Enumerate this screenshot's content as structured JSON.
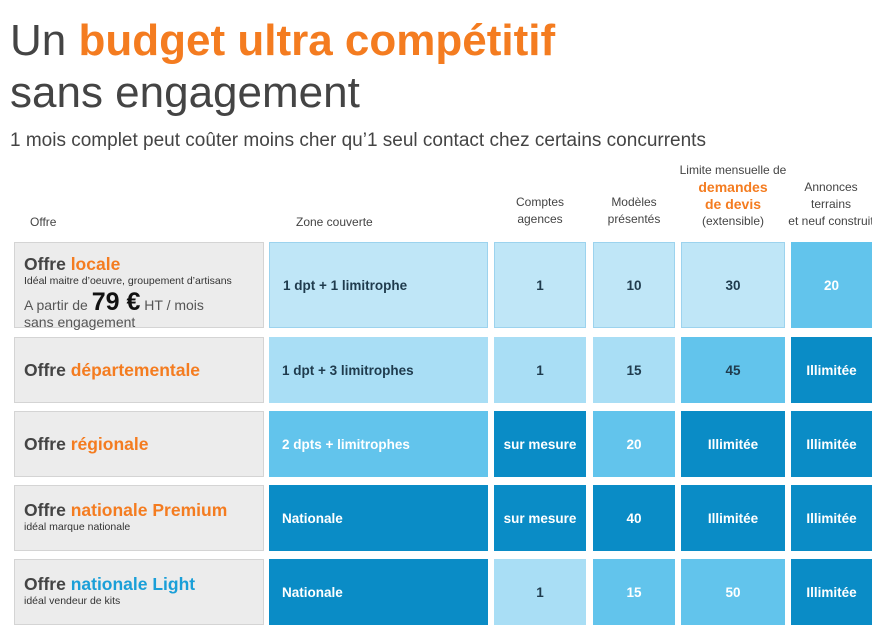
{
  "title": {
    "prefix": "Un ",
    "highlight": "budget ultra compétitif",
    "line2": "sans engagement"
  },
  "subtitle": "1 mois complet peut coûter moins cher qu’1 seul contact chez certains concurrents",
  "headers": {
    "offre": "Offre",
    "zone": "Zone couverte",
    "comptes_1": "Comptes",
    "comptes_2": "agences",
    "modeles_1": "Modèles",
    "modeles_2": "présentés",
    "limite_1": "Limite mensuelle de",
    "limite_2": "demandes",
    "limite_3": "de devis",
    "limite_4": "(extensible)",
    "annonces_1": "Annonces",
    "annonces_2": "terrains",
    "annonces_3": "et neuf construit"
  },
  "rows": [
    {
      "name_prefix": "Offre ",
      "name_highlight": "locale",
      "desc": "Idéal maitre d’oeuvre, groupement d’artisans",
      "price_prefix": "A partir de ",
      "price_value": "79 €",
      "price_suffix": " HT / mois",
      "price_line2": "sans engagement",
      "zone": "1 dpt + 1 limitrophe",
      "comptes": "1",
      "modeles": "10",
      "limite": "30",
      "annonces": "20"
    },
    {
      "name_prefix": "Offre ",
      "name_highlight": "départementale",
      "zone": "1 dpt + 3 limitrophes",
      "comptes": "1",
      "modeles": "15",
      "limite": "45",
      "annonces": "Illimitée"
    },
    {
      "name_prefix": "Offre ",
      "name_highlight": "régionale",
      "zone": "2 dpts + limitrophes",
      "comptes": "sur mesure",
      "modeles": "20",
      "limite": "Illimitée",
      "annonces": "Illimitée"
    },
    {
      "name_prefix": "Offre ",
      "name_highlight": "nationale Premium",
      "desc": "idéal marque nationale",
      "zone": "Nationale",
      "comptes": "sur mesure",
      "modeles": "40",
      "limite": "Illimitée",
      "annonces": "Illimitée"
    },
    {
      "name_prefix": "Offre ",
      "name_highlight": "nationale Light",
      "desc": "idéal vendeur de kits",
      "zone": "Nationale",
      "comptes": "1",
      "modeles": "15",
      "limite": "50",
      "annonces": "Illimitée"
    }
  ],
  "colors": {
    "orange": "#f47c20",
    "blue_text": "#1a9fd8",
    "tint_lightest": "#bfe6f7",
    "tint_light": "#a9def5",
    "tint_medium": "#62c4ec",
    "tint_dark": "#0a8cc6",
    "offer_bg": "#ececec"
  }
}
